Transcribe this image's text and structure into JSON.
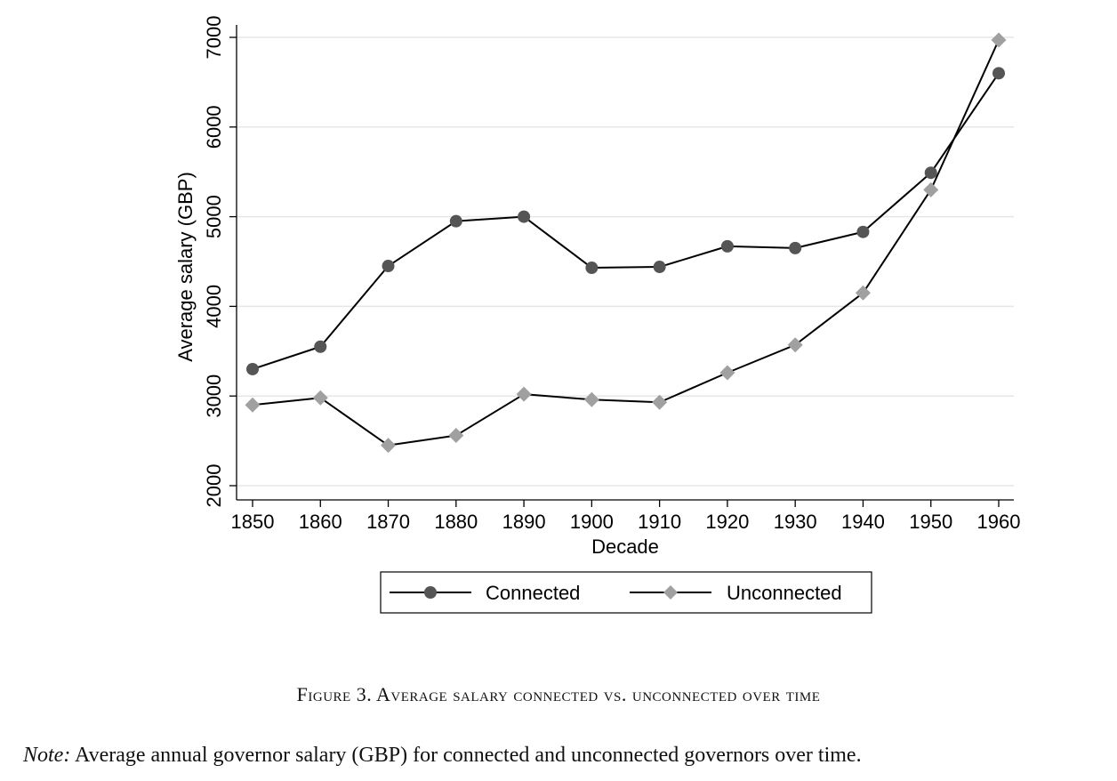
{
  "caption": "Figure 3. Average salary connected vs. unconnected over time",
  "note": {
    "label": "Note:",
    "text": "Average annual governor salary (GBP) for connected and unconnected governors over time."
  },
  "chart_data": {
    "type": "line",
    "xlabel": "Decade",
    "ylabel": "Average salary (GBP)",
    "x": [
      1850,
      1860,
      1870,
      1880,
      1890,
      1900,
      1910,
      1920,
      1930,
      1940,
      1950,
      1960
    ],
    "xlim": [
      1850,
      1960
    ],
    "ylim": [
      2000,
      7000
    ],
    "yticks": [
      2000,
      3000,
      4000,
      5000,
      6000,
      7000
    ],
    "grid": true,
    "legend_position": "bottom",
    "series": [
      {
        "name": "Connected",
        "marker": "circle",
        "color": "#555555",
        "values": [
          3300,
          3550,
          4450,
          4950,
          5000,
          4430,
          4440,
          4670,
          4650,
          4830,
          5490,
          6600
        ]
      },
      {
        "name": "Unconnected",
        "marker": "diamond",
        "color": "#a0a0a0",
        "values": [
          2900,
          2980,
          2450,
          2560,
          3020,
          2960,
          2930,
          3260,
          3570,
          4150,
          5300,
          6970
        ]
      }
    ]
  }
}
